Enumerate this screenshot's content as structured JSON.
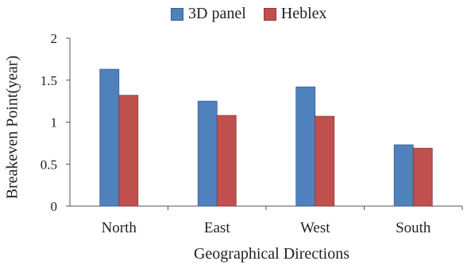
{
  "chart_data": {
    "type": "bar",
    "categories": [
      "North",
      "East",
      "West",
      "South"
    ],
    "series": [
      {
        "name": "3D panel",
        "values": [
          1.63,
          1.25,
          1.42,
          0.73
        ],
        "color": "#4F81BD"
      },
      {
        "name": "Heblex",
        "values": [
          1.32,
          1.08,
          1.07,
          0.69
        ],
        "color": "#C0504D"
      }
    ],
    "title": "",
    "xlabel": "Geographical Directions",
    "ylabel": "Breakeven Point(year)",
    "ylim": [
      0,
      2
    ],
    "yticks": [
      "0",
      "0.5",
      "1",
      "1.5",
      "2"
    ],
    "grid": false,
    "legend_position": "top"
  }
}
